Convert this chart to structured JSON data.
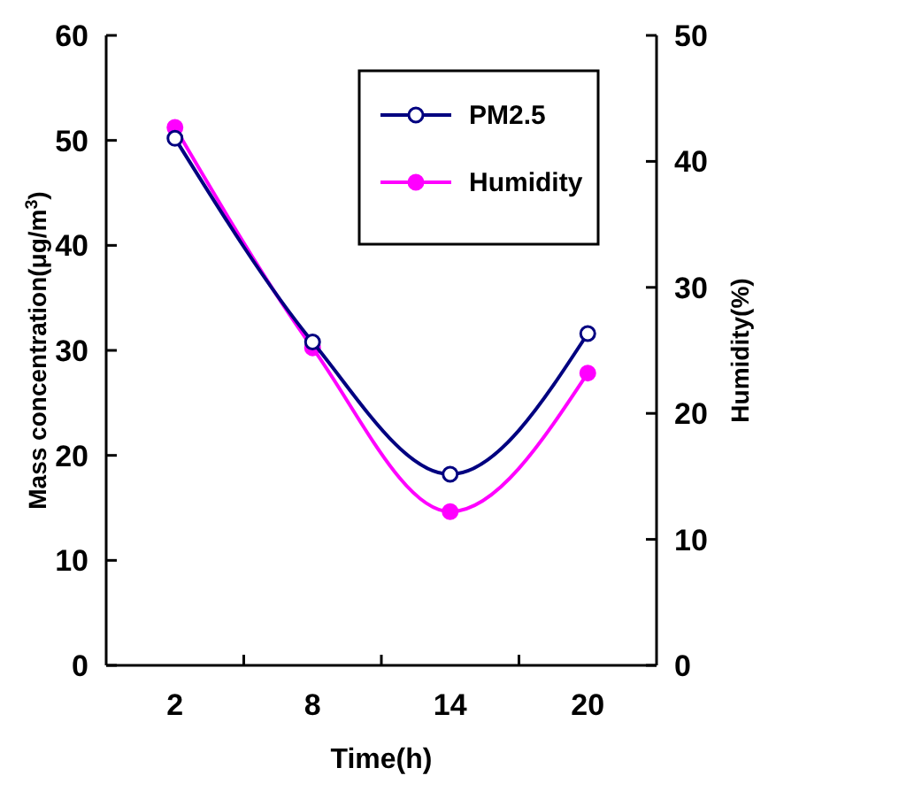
{
  "chart_data": {
    "type": "line",
    "xlabel": "Time(h)",
    "ylabel": "Mass concentration(μg/m$^{3}$)",
    "y2label": "Humidity(%)",
    "categories": [
      "2",
      "8",
      "14",
      "20"
    ],
    "series": [
      {
        "name": "PM2.5",
        "color": "#000080",
        "values": [
          50.2,
          30.8,
          18.2,
          31.6
        ]
      },
      {
        "name": "Humidity",
        "color": "#ff00ff",
        "values": [
          42.7,
          25.2,
          12.2,
          23.2
        ],
        "axis": "y2"
      }
    ],
    "ylim": [
      0,
      60
    ],
    "yticks": [
      0,
      10,
      20,
      30,
      40,
      50,
      60
    ],
    "y2lim": [
      0,
      50
    ],
    "y2ticks": [
      0,
      10,
      20,
      30,
      40,
      50
    ],
    "marker": "circle",
    "line_style": "solid",
    "legend": "top right",
    "grid": false
  }
}
